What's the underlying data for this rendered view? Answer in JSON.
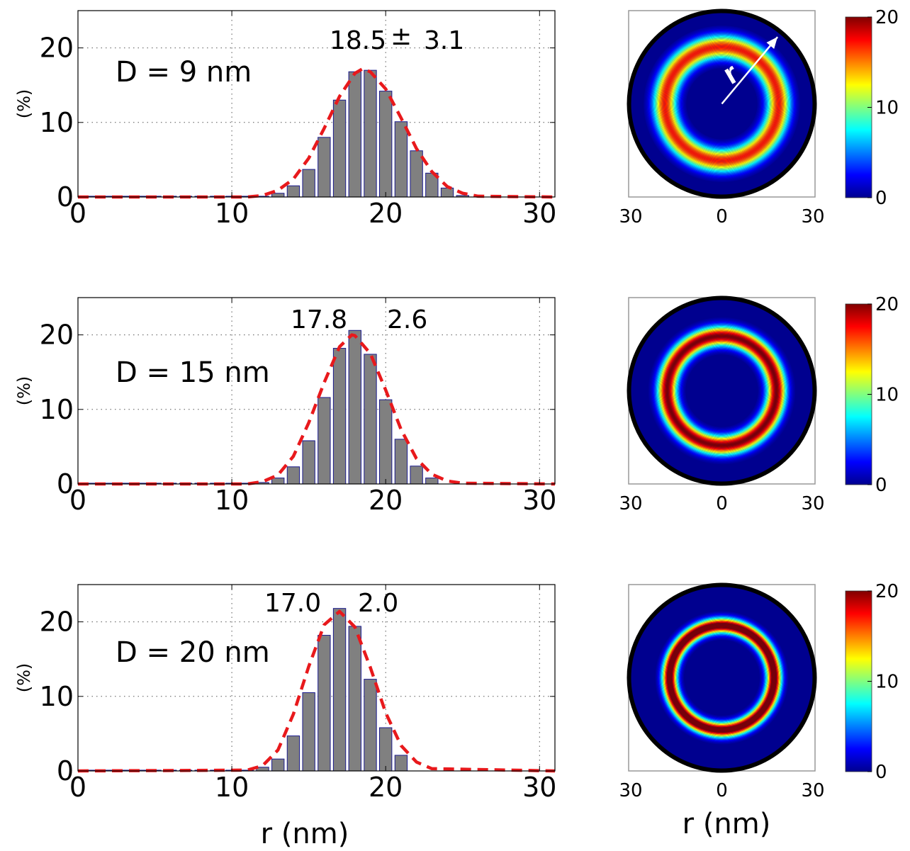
{
  "figure": {
    "histogram_xlabel": "r (nm)",
    "map_xlabel": "r (nm)",
    "colorbar_ticks": [
      "0",
      "10",
      "20"
    ],
    "map_ticks": [
      "30",
      "0",
      "30"
    ],
    "arrow_label": "r"
  },
  "chart_data": [
    {
      "type": "bar",
      "ylabel": "(%)",
      "xlabel": "",
      "xlim": [
        0,
        31
      ],
      "ylim": [
        0,
        25
      ],
      "xticks": [
        0,
        10,
        20,
        30
      ],
      "yticks": [
        0,
        10,
        20
      ],
      "grid": "dotted",
      "bar_width": 0.8,
      "annotation_label": "D = 9 nm",
      "mean_text": "18.5",
      "pm_text": "±",
      "std_text": "3.1",
      "mean": 18.5,
      "std": 3.1,
      "bars": {
        "x": [
          1,
          2,
          3,
          4,
          5,
          6,
          7,
          8,
          9,
          10,
          11,
          12,
          13,
          14,
          15,
          16,
          17,
          18,
          19,
          20,
          21,
          22,
          23,
          24,
          25
        ],
        "values": [
          0.1,
          0.1,
          0.1,
          0.1,
          0.1,
          0.1,
          0.1,
          0.1,
          0.1,
          0.1,
          0.1,
          0.1,
          0.5,
          1.5,
          3.7,
          8.0,
          13.0,
          16.8,
          17.0,
          14.2,
          10.1,
          6.2,
          3.2,
          1.2,
          0.2
        ]
      },
      "fit": {
        "x": [
          0,
          11,
          12,
          13,
          14,
          15,
          16,
          17,
          18,
          18.5,
          19,
          20,
          21,
          22,
          23,
          24,
          25,
          26,
          31
        ],
        "values": [
          0.0,
          0.0,
          0.2,
          0.9,
          2.4,
          5.2,
          9.2,
          13.5,
          16.6,
          17.2,
          16.8,
          14.5,
          10.6,
          6.5,
          3.4,
          1.4,
          0.5,
          0.1,
          0.0
        ]
      }
    },
    {
      "type": "bar",
      "ylabel": "(%)",
      "xlabel": "",
      "xlim": [
        0,
        31
      ],
      "ylim": [
        0,
        25
      ],
      "xticks": [
        0,
        10,
        20,
        30
      ],
      "yticks": [
        0,
        10,
        20
      ],
      "grid": "dotted",
      "bar_width": 0.8,
      "annotation_label": "D = 15 nm",
      "mean_text": "17.8",
      "pm_text": "",
      "std_text": "2.6",
      "mean": 17.8,
      "std": 2.6,
      "bars": {
        "x": [
          1,
          2,
          3,
          4,
          5,
          6,
          7,
          8,
          9,
          10,
          11,
          12,
          13,
          14,
          15,
          16,
          17,
          18,
          19,
          20,
          21,
          22,
          23
        ],
        "values": [
          0.1,
          0.1,
          0.1,
          0.1,
          0.1,
          0.1,
          0.1,
          0.1,
          0.1,
          0.1,
          0.1,
          0.2,
          0.8,
          2.3,
          5.8,
          11.6,
          18.2,
          20.6,
          17.4,
          11.3,
          6.0,
          2.4,
          0.8
        ]
      },
      "fit": {
        "x": [
          0,
          11,
          12,
          13,
          14,
          15,
          16,
          17,
          17.8,
          18,
          19,
          20,
          21,
          22,
          23,
          24,
          25,
          31
        ],
        "values": [
          0.0,
          0.0,
          0.3,
          1.2,
          3.7,
          8.2,
          13.6,
          18.4,
          20.0,
          19.9,
          17.5,
          12.6,
          7.3,
          3.4,
          1.3,
          0.4,
          0.1,
          0.0
        ]
      }
    },
    {
      "type": "bar",
      "ylabel": "(%)",
      "xlabel": "r (nm)",
      "xlim": [
        0,
        31
      ],
      "ylim": [
        0,
        25
      ],
      "xticks": [
        0,
        10,
        20,
        30
      ],
      "yticks": [
        0,
        10,
        20
      ],
      "grid": "dotted",
      "bar_width": 0.8,
      "annotation_label": "D = 20 nm",
      "mean_text": "17.0",
      "pm_text": "",
      "std_text": "2.0",
      "mean": 17.0,
      "std": 2.0,
      "bars": {
        "x": [
          1,
          2,
          3,
          4,
          5,
          6,
          7,
          8,
          9,
          10,
          11,
          12,
          13,
          14,
          15,
          16,
          17,
          18,
          19,
          20,
          21
        ],
        "values": [
          0.1,
          0.1,
          0.1,
          0.1,
          0.1,
          0.1,
          0.1,
          0.1,
          0.1,
          0.1,
          0.1,
          0.5,
          1.6,
          4.7,
          10.5,
          18.2,
          21.8,
          19.4,
          12.3,
          5.8,
          2.1
        ]
      },
      "fit": {
        "x": [
          0,
          11,
          12,
          13,
          14,
          15,
          16,
          17,
          18,
          19,
          20,
          21,
          22,
          23,
          31
        ],
        "values": [
          0.0,
          0.1,
          0.7,
          2.8,
          7.6,
          14.0,
          19.6,
          21.4,
          19.3,
          13.9,
          7.8,
          3.4,
          1.2,
          0.3,
          0.0
        ]
      }
    }
  ],
  "maps": [
    {
      "ring_radius": 18.5,
      "ring_width": 3.1,
      "peak": 17,
      "max_extent": 30,
      "color_max": 20,
      "has_arrow": true
    },
    {
      "ring_radius": 17.8,
      "ring_width": 2.6,
      "peak": 20,
      "max_extent": 30,
      "color_max": 20,
      "has_arrow": false
    },
    {
      "ring_radius": 17.0,
      "ring_width": 2.0,
      "peak": 22,
      "max_extent": 30,
      "color_max": 20,
      "has_arrow": false
    }
  ],
  "colors": {
    "bar_fill": "#808080",
    "bar_edge": "#1a1a8c",
    "fit_line": "#e8191c",
    "map_background": "#00008f",
    "map_border": "#000000"
  }
}
